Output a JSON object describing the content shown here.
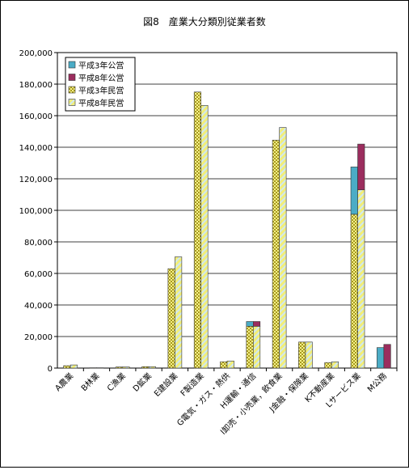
{
  "chart_data": {
    "type": "bar",
    "title": "図8　産業大分類別従業者数",
    "xlabel": "",
    "ylabel": "",
    "ylim": [
      0,
      200000
    ],
    "yticks": [
      0,
      20000,
      40000,
      60000,
      80000,
      100000,
      120000,
      140000,
      160000,
      180000,
      200000
    ],
    "ytick_labels": [
      "0",
      "20,000",
      "40,000",
      "60,000",
      "80,000",
      "100,000",
      "120,000",
      "140,000",
      "160,000",
      "180,000",
      "200,000"
    ],
    "grid": true,
    "legend_position": "top-left",
    "stacked": true,
    "categories": [
      "A農業",
      "B林業",
      "C漁業",
      "D鉱業",
      "E建設業",
      "F製造業",
      "G電気・ガス・熱供",
      "H運輸・通信",
      "I卸売・小売業，飲食業",
      "J金融・保険業",
      "K不動産業",
      "Lサービス業",
      "M公務"
    ],
    "series": [
      {
        "name": "平成3年公営",
        "group": "平成3年",
        "color": "#4BACC6",
        "pattern": "solid",
        "values": [
          0,
          0,
          0,
          0,
          0,
          0,
          0,
          3000,
          0,
          0,
          0,
          30000,
          13000
        ]
      },
      {
        "name": "平成8年公営",
        "group": "平成8年",
        "color": "#9B2D5E",
        "pattern": "solid",
        "values": [
          0,
          0,
          0,
          0,
          0,
          0,
          0,
          3000,
          0,
          0,
          0,
          29000,
          15000
        ]
      },
      {
        "name": "平成3年民営",
        "group": "平成3年",
        "color": "#C8BE32",
        "pattern": "checker",
        "values": [
          1500,
          200,
          700,
          900,
          63000,
          175000,
          4000,
          26500,
          144500,
          16500,
          3500,
          97500,
          0
        ]
      },
      {
        "name": "平成8年民営",
        "group": "平成8年",
        "color": "#F0EC6A",
        "pattern": "diagonal",
        "values": [
          2000,
          200,
          700,
          900,
          70500,
          166500,
          4500,
          26500,
          152500,
          16500,
          4000,
          113000,
          0
        ]
      }
    ]
  }
}
